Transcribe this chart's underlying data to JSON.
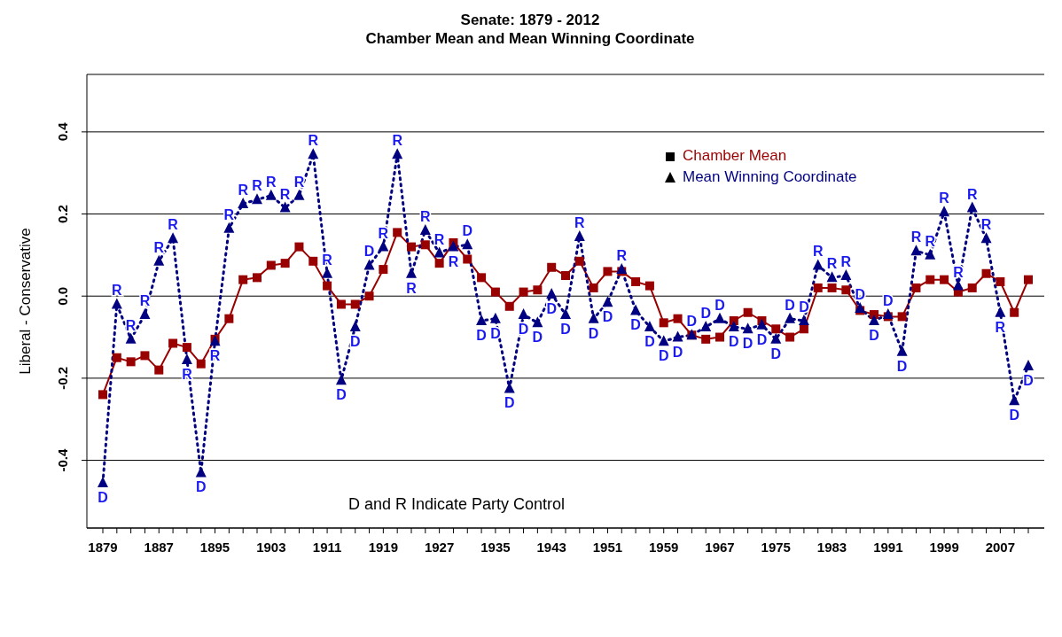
{
  "chart_data": {
    "type": "line",
    "title": "Senate: 1879 - 2012",
    "subtitle": "Chamber Mean and Mean Winning Coordinate",
    "ylabel": "Liberal - Conservative",
    "annotations": [
      "D and R Indicate Party Control"
    ],
    "categories": [
      "1879",
      null,
      null,
      null,
      "1887",
      null,
      null,
      null,
      "1895",
      null,
      null,
      null,
      "1903",
      null,
      null,
      null,
      "1911",
      null,
      null,
      null,
      "1919",
      null,
      null,
      null,
      "1927",
      null,
      null,
      null,
      "1935",
      null,
      null,
      null,
      "1943",
      null,
      null,
      null,
      "1951",
      null,
      null,
      null,
      "1959",
      null,
      null,
      null,
      "1967",
      null,
      null,
      null,
      "1975",
      null,
      null,
      null,
      "1983",
      null,
      null,
      null,
      "1991",
      null,
      null,
      null,
      "1999",
      null,
      null,
      null,
      "2007",
      null,
      null
    ],
    "series": [
      {
        "name": "Chamber Mean",
        "color": "#990000",
        "marker": "square",
        "line_style": "solid",
        "values": [
          -0.24,
          -0.15,
          -0.16,
          -0.145,
          -0.18,
          -0.115,
          -0.125,
          -0.165,
          -0.105,
          -0.055,
          0.04,
          0.045,
          0.075,
          0.08,
          0.12,
          0.085,
          0.025,
          -0.02,
          -0.02,
          0.0,
          0.065,
          0.155,
          0.12,
          0.125,
          0.08,
          0.13,
          0.09,
          0.045,
          0.01,
          -0.025,
          0.01,
          0.015,
          0.07,
          0.05,
          0.085,
          0.02,
          0.06,
          0.06,
          0.035,
          0.025,
          -0.065,
          -0.055,
          -0.095,
          -0.105,
          -0.1,
          -0.06,
          -0.04,
          -0.06,
          -0.08,
          -0.1,
          -0.08,
          0.02,
          0.02,
          0.015,
          -0.035,
          -0.045,
          -0.05,
          -0.05,
          0.02,
          0.04,
          0.04,
          0.01,
          0.02,
          0.055,
          0.035,
          -0.04,
          0.04
        ]
      },
      {
        "name": "Mean Winning Coordinate",
        "color": "#000080",
        "marker": "triangle",
        "line_style": "dotted",
        "values": [
          -0.455,
          -0.02,
          -0.105,
          -0.045,
          0.085,
          0.14,
          -0.155,
          -0.43,
          -0.11,
          0.165,
          0.225,
          0.235,
          0.245,
          0.215,
          0.245,
          0.345,
          0.055,
          -0.205,
          -0.075,
          0.075,
          0.12,
          0.345,
          0.055,
          0.16,
          0.105,
          0.12,
          0.125,
          -0.06,
          -0.055,
          -0.225,
          -0.045,
          -0.065,
          0.005,
          -0.045,
          0.145,
          -0.055,
          -0.015,
          0.065,
          -0.035,
          -0.075,
          -0.11,
          -0.1,
          -0.095,
          -0.075,
          -0.055,
          -0.075,
          -0.08,
          -0.07,
          -0.105,
          -0.055,
          -0.06,
          0.075,
          0.045,
          0.05,
          -0.03,
          -0.06,
          -0.045,
          -0.135,
          0.11,
          0.1,
          0.205,
          0.025,
          0.215,
          0.14,
          -0.04,
          -0.255,
          -0.17
        ],
        "value_labels": [
          "D",
          "R",
          "R",
          "R",
          "R",
          "R",
          "R",
          "D",
          "R",
          "R",
          "R",
          "R",
          "R",
          "R",
          "R",
          "R",
          "R",
          "D",
          "D",
          "D",
          "R",
          "R",
          "R",
          "R",
          "R",
          "R",
          "D",
          "D",
          "D",
          "D",
          "D",
          "D",
          "D",
          "D",
          "R",
          "D",
          "D",
          "R",
          "D",
          "D",
          "D",
          "D",
          "D",
          "D",
          "D",
          "D",
          "D",
          "D",
          "D",
          "D",
          "D",
          "R",
          "R",
          "R",
          "D",
          "D",
          "D",
          "D",
          "R",
          "R",
          "R",
          "R",
          "R",
          "R",
          "R",
          "D",
          "D"
        ]
      }
    ],
    "ylim": [
      -0.565,
      0.54
    ],
    "yticks": [
      -0.4,
      -0.2,
      {
        "value": 0,
        "label": "0.0"
      },
      0.2,
      0.4
    ],
    "grid": "y",
    "legend": "top right"
  }
}
